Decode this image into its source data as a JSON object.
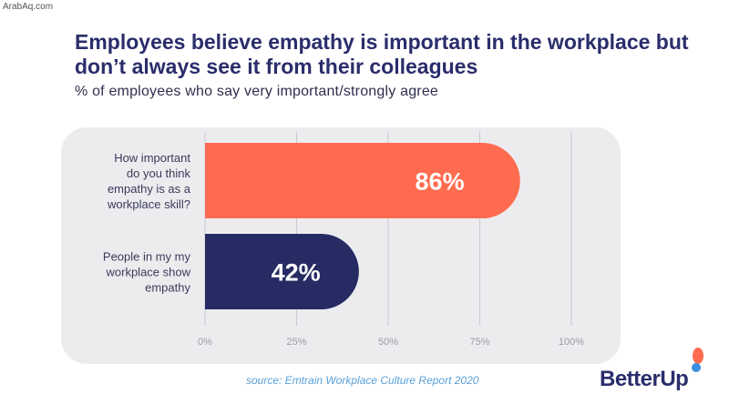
{
  "watermark": "ArabAq.com",
  "chart_data": {
    "type": "bar",
    "orientation": "horizontal",
    "title": "Employees believe empathy is important in the workplace but don’t always see it from their colleagues",
    "subtitle": "% of employees who say very important/strongly agree",
    "categories": [
      [
        "How important",
        "do you think",
        "empathy is as a",
        "workplace skill?"
      ],
      [
        "People in my my",
        "workplace show",
        "empathy"
      ]
    ],
    "values": [
      86,
      42
    ],
    "value_labels": [
      "86%",
      "42%"
    ],
    "xlim": [
      0,
      100
    ],
    "x_ticks": [
      0,
      25,
      50,
      75,
      100
    ],
    "x_tick_labels": [
      "0%",
      "25%",
      "50%",
      "75%",
      "100%"
    ],
    "grid": true,
    "bar_colors": [
      "#ff6b4f",
      "#262b63"
    ],
    "source": "source: Emtrain Workplace Culture Report 2020"
  },
  "brand": {
    "logo_text": "BetterUp",
    "colors": {
      "navy": "#2a2d6b",
      "coral": "#ff6b4f",
      "blue": "#3b8fe0"
    }
  }
}
